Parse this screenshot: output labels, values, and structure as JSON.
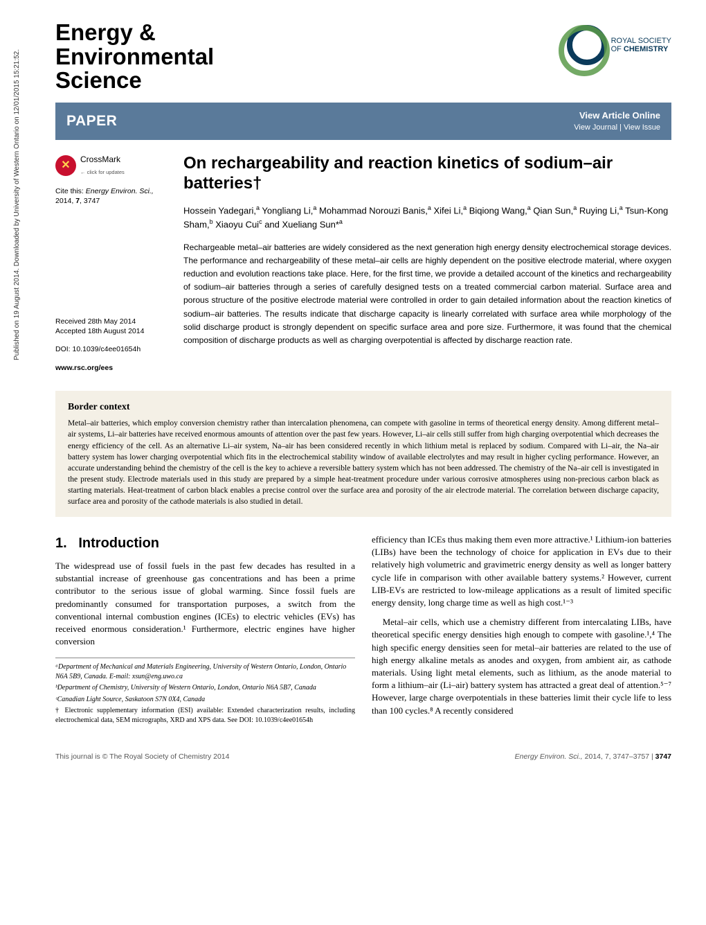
{
  "side_note": "Published on 19 August 2014. Downloaded by University of Western Ontario on 12/01/2015 15:21:52.",
  "journal": {
    "name_line1": "Energy &",
    "name_line2": "Environmental",
    "name_line3": "Science"
  },
  "publisher": {
    "line1": "ROYAL SOCIETY",
    "line2_prefix": "OF",
    "line2_bold": "CHEMISTRY"
  },
  "bar": {
    "label": "PAPER",
    "view_article": "View Article Online",
    "view_journal": "View Journal",
    "view_issue": "View Issue"
  },
  "crossmark": {
    "title": "CrossMark",
    "sub": "← click for updates"
  },
  "meta": {
    "cite_prefix": "Cite this:",
    "cite_journal": "Energy Environ. Sci.,",
    "cite_year": "2014,",
    "cite_vol": "7",
    "cite_page": "3747",
    "received": "Received 28th May 2014",
    "accepted": "Accepted 18th August 2014",
    "doi": "DOI: 10.1039/c4ee01654h",
    "url": "www.rsc.org/ees"
  },
  "article": {
    "title": "On rechargeability and reaction kinetics of sodium–air batteries†",
    "authors_html": "Hossein Yadegari,<sup>a</sup> Yongliang Li,<sup>a</sup> Mohammad Norouzi Banis,<sup>a</sup> Xifei Li,<sup>a</sup> Biqiong Wang,<sup>a</sup> Qian Sun,<sup>a</sup> Ruying Li,<sup>a</sup> Tsun-Kong Sham,<sup>b</sup> Xiaoyu Cui<sup>c</sup> and Xueliang Sun*<sup>a</sup>",
    "abstract": "Rechargeable metal–air batteries are widely considered as the next generation high energy density electrochemical storage devices. The performance and rechargeability of these metal–air cells are highly dependent on the positive electrode material, where oxygen reduction and evolution reactions take place. Here, for the first time, we provide a detailed account of the kinetics and rechargeability of sodium–air batteries through a series of carefully designed tests on a treated commercial carbon material. Surface area and porous structure of the positive electrode material were controlled in order to gain detailed information about the reaction kinetics of sodium–air batteries. The results indicate that discharge capacity is linearly correlated with surface area while morphology of the solid discharge product is strongly dependent on specific surface area and pore size. Furthermore, it was found that the chemical composition of discharge products as well as charging overpotential is affected by discharge reaction rate."
  },
  "context": {
    "heading": "Border context",
    "text": "Metal–air batteries, which employ conversion chemistry rather than intercalation phenomena, can compete with gasoline in terms of theoretical energy density. Among different metal–air systems, Li–air batteries have received enormous amounts of attention over the past few years. However, Li–air cells still suffer from high charging overpotential which decreases the energy efficiency of the cell. As an alternative Li–air system, Na–air has been considered recently in which lithium metal is replaced by sodium. Compared with Li–air, the Na–air battery system has lower charging overpotential which fits in the electrochemical stability window of available electrolytes and may result in higher cycling performance. However, an accurate understanding behind the chemistry of the cell is the key to achieve a reversible battery system which has not been addressed. The chemistry of the Na–air cell is investigated in the present study. Electrode materials used in this study are prepared by a simple heat-treatment procedure under various corrosive atmospheres using non-precious carbon black as starting materials. Heat-treatment of carbon black enables a precise control over the surface area and porosity of the air electrode material. The correlation between discharge capacity, surface area and porosity of the cathode materials is also studied in detail."
  },
  "body": {
    "section_number": "1.",
    "section_title": "Introduction",
    "para1": "The widespread use of fossil fuels in the past few decades has resulted in a substantial increase of greenhouse gas concentrations and has been a prime contributor to the serious issue of global warming. Since fossil fuels are predominantly consumed for transportation purposes, a switch from the conventional internal combustion engines (ICEs) to electric vehicles (EVs) has received enormous consideration.¹ Furthermore, electric engines have higher conversion",
    "para2": "efficiency than ICEs thus making them even more attractive.¹ Lithium-ion batteries (LIBs) have been the technology of choice for application in EVs due to their relatively high volumetric and gravimetric energy density as well as longer battery cycle life in comparison with other available battery systems.² However, current LIB-EVs are restricted to low-mileage applications as a result of limited specific energy density, long charge time as well as high cost.¹⁻³",
    "para3": "Metal–air cells, which use a chemistry different from intercalating LIBs, have theoretical specific energy densities high enough to compete with gasoline.¹,⁴ The high specific energy densities seen for metal–air batteries are related to the use of high energy alkaline metals as anodes and oxygen, from ambient air, as cathode materials. Using light metal elements, such as lithium, as the anode material to form a lithium–air (Li–air) battery system has attracted a great deal of attention.⁵⁻⁷ However, large charge overpotentials in these batteries limit their cycle life to less than 100 cycles.⁸ A recently considered"
  },
  "affiliations": {
    "a": "ᵃDepartment of Mechanical and Materials Engineering, University of Western Ontario, London, Ontario N6A 5B9, Canada. E-mail: xsun@eng.uwo.ca",
    "b": "ᵇDepartment of Chemistry, University of Western Ontario, London, Ontario N6A 5B7, Canada",
    "c": "ᶜCanadian Light Source, Saskatoon S7N 0X4, Canada",
    "esi": "† Electronic supplementary information (ESI) available: Extended characterization results, including electrochemical data, SEM micrographs, XRD and XPS data. See DOI: 10.1039/c4ee01654h"
  },
  "footer": {
    "left": "This journal is © The Royal Society of Chemistry 2014",
    "right_journal": "Energy Environ. Sci.,",
    "right_cite": "2014, 7, 3747–3757 |",
    "right_page": "3747"
  },
  "colors": {
    "bar_bg": "#5a7a9a",
    "context_bg": "#f4f0e6",
    "crossmark_red": "#c8102e"
  }
}
